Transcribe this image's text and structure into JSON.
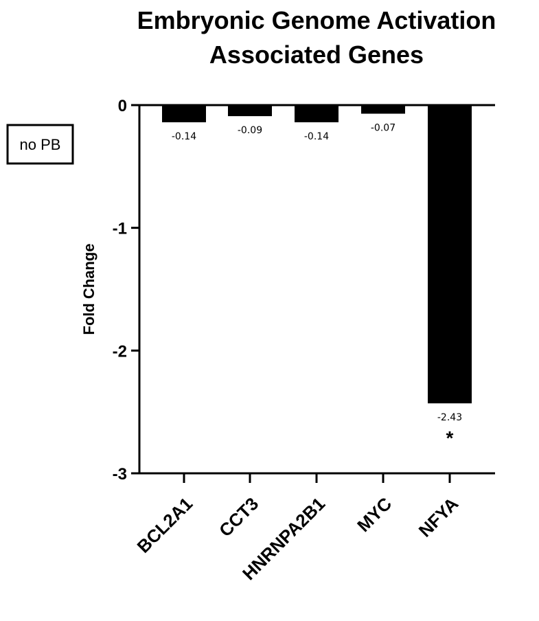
{
  "chart_data": {
    "type": "bar",
    "title_line1": "Embryonic Genome Activation",
    "title_line2": "Associated Genes",
    "ylabel": "Fold Change",
    "xlabel": "",
    "categories": [
      "BCL2A1",
      "CCT3",
      "HNRNPA2B1",
      "MYC",
      "NFYA"
    ],
    "values": [
      -0.14,
      -0.09,
      -0.14,
      -0.07,
      -2.43
    ],
    "data_labels": [
      "-0.14",
      "-0.09",
      "-0.14",
      "-0.07",
      "-2.43"
    ],
    "significance": [
      "",
      "",
      "",
      "",
      "*"
    ],
    "ylim": [
      -3,
      0
    ],
    "yticks": [
      0,
      -1,
      -2,
      -3
    ],
    "ytick_labels": [
      "0",
      "-1",
      "-2",
      "-3"
    ],
    "bar_color": "#000000",
    "grid": false
  },
  "badge": {
    "label": "no PB"
  }
}
